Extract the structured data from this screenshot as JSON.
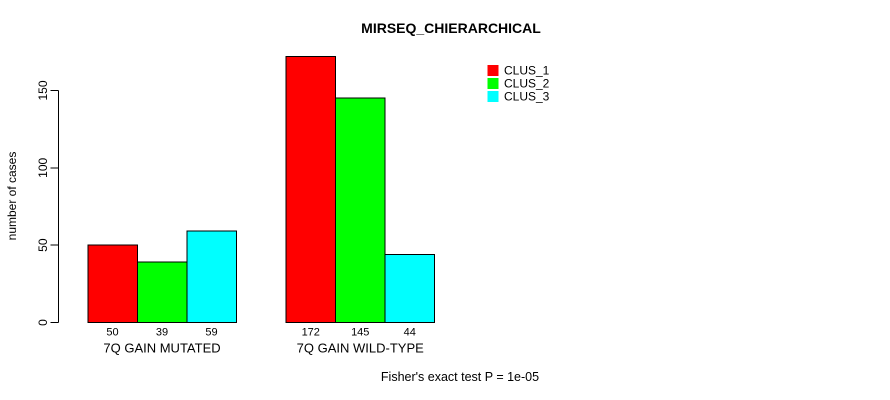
{
  "chart_data": {
    "type": "bar",
    "title": "MIRSEQ_CHIERARCHICAL",
    "xlabel": "",
    "ylabel": "number of cases",
    "caption": "Fisher's exact test P = 1e-05",
    "categories": [
      "7Q GAIN MUTATED",
      "7Q GAIN WILD-TYPE"
    ],
    "series": [
      {
        "name": "CLUS_1",
        "color": "#ff0000",
        "values": [
          50,
          172
        ]
      },
      {
        "name": "CLUS_2",
        "color": "#00ff00",
        "values": [
          39,
          145
        ]
      },
      {
        "name": "CLUS_3",
        "color": "#00ffff",
        "values": [
          59,
          44
        ]
      }
    ],
    "y_ticks": [
      0,
      50,
      100,
      150
    ],
    "ylim": [
      0,
      150
    ],
    "grid": false,
    "legend_position": "top-right",
    "bar_value_labels_shown": true,
    "axis_color": "#000000",
    "bar_border_color": "#000000",
    "background_color": "#ffffff"
  }
}
